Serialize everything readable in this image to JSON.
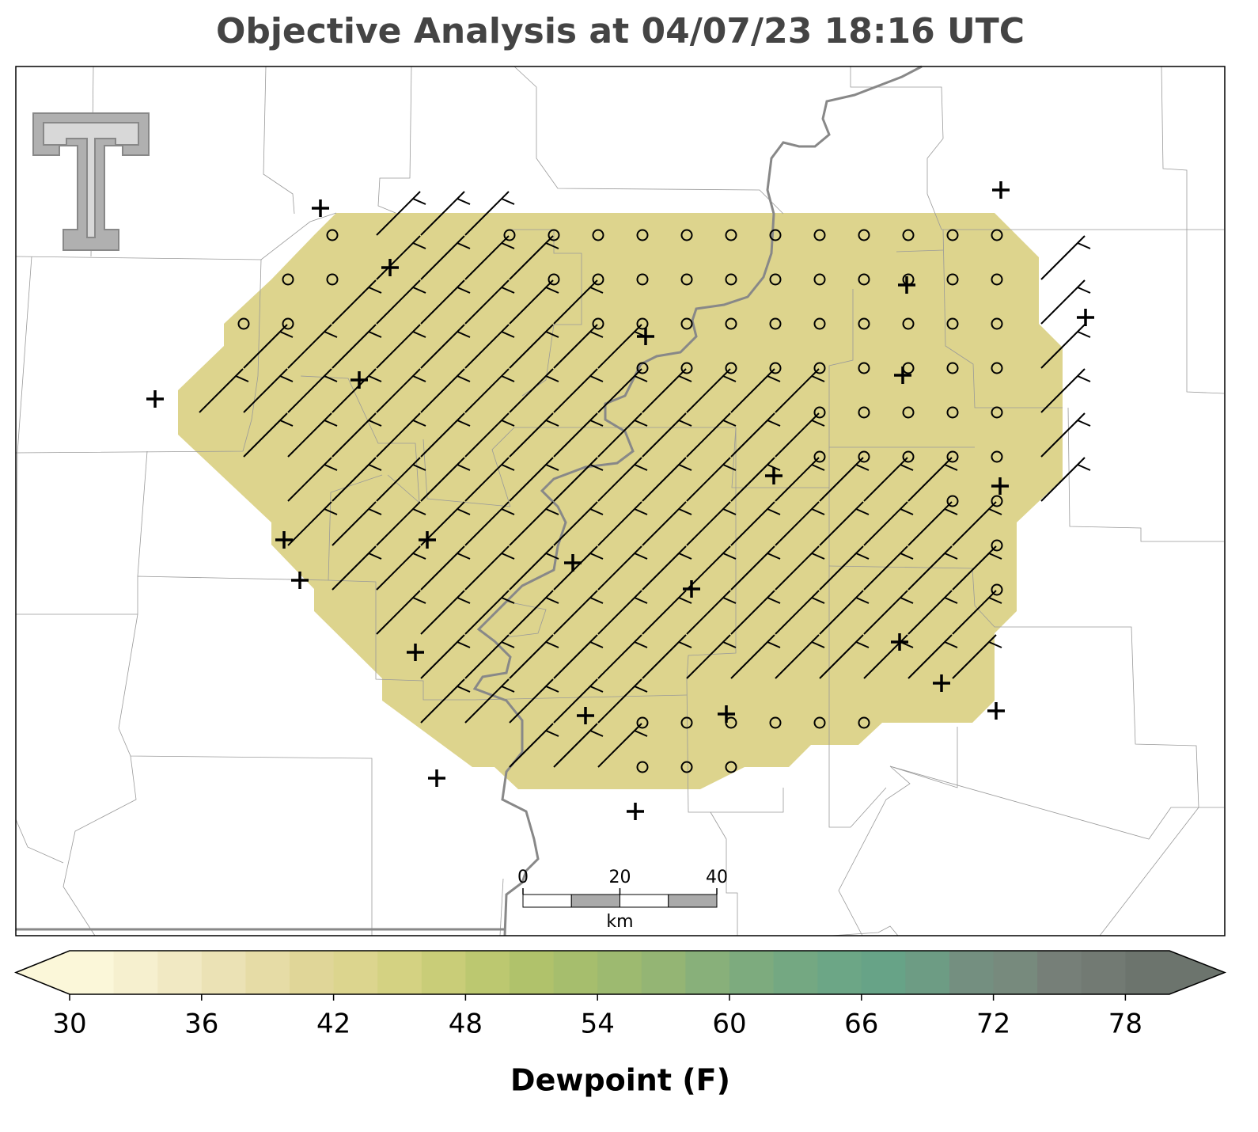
{
  "title": "Objective Analysis at 04/07/23 18:16 UTC",
  "analysis_fill": "#ddd48d",
  "scale_bar": {
    "ticks": [
      0,
      20,
      40
    ],
    "unit": "km"
  },
  "colorbar": {
    "label": "Dewpoint (F)",
    "range": [
      30,
      80
    ],
    "ticks": [
      30,
      36,
      42,
      48,
      54,
      60,
      66,
      72,
      78
    ],
    "colors": [
      "#fbf7d9",
      "#f6f0cf",
      "#f1e9c3",
      "#ebe2b5",
      "#e6dca6",
      "#e0d698",
      "#dcd58e",
      "#d4d282",
      "#c9cd78",
      "#bcc870",
      "#b0c26b",
      "#a6be6d",
      "#9dba70",
      "#94b574",
      "#88b07a",
      "#7dab7e",
      "#74a882",
      "#6ca686",
      "#67a387",
      "#6d9c84",
      "#748f80",
      "#778a7d",
      "#767f78",
      "#727a73",
      "#6c746d"
    ]
  }
}
